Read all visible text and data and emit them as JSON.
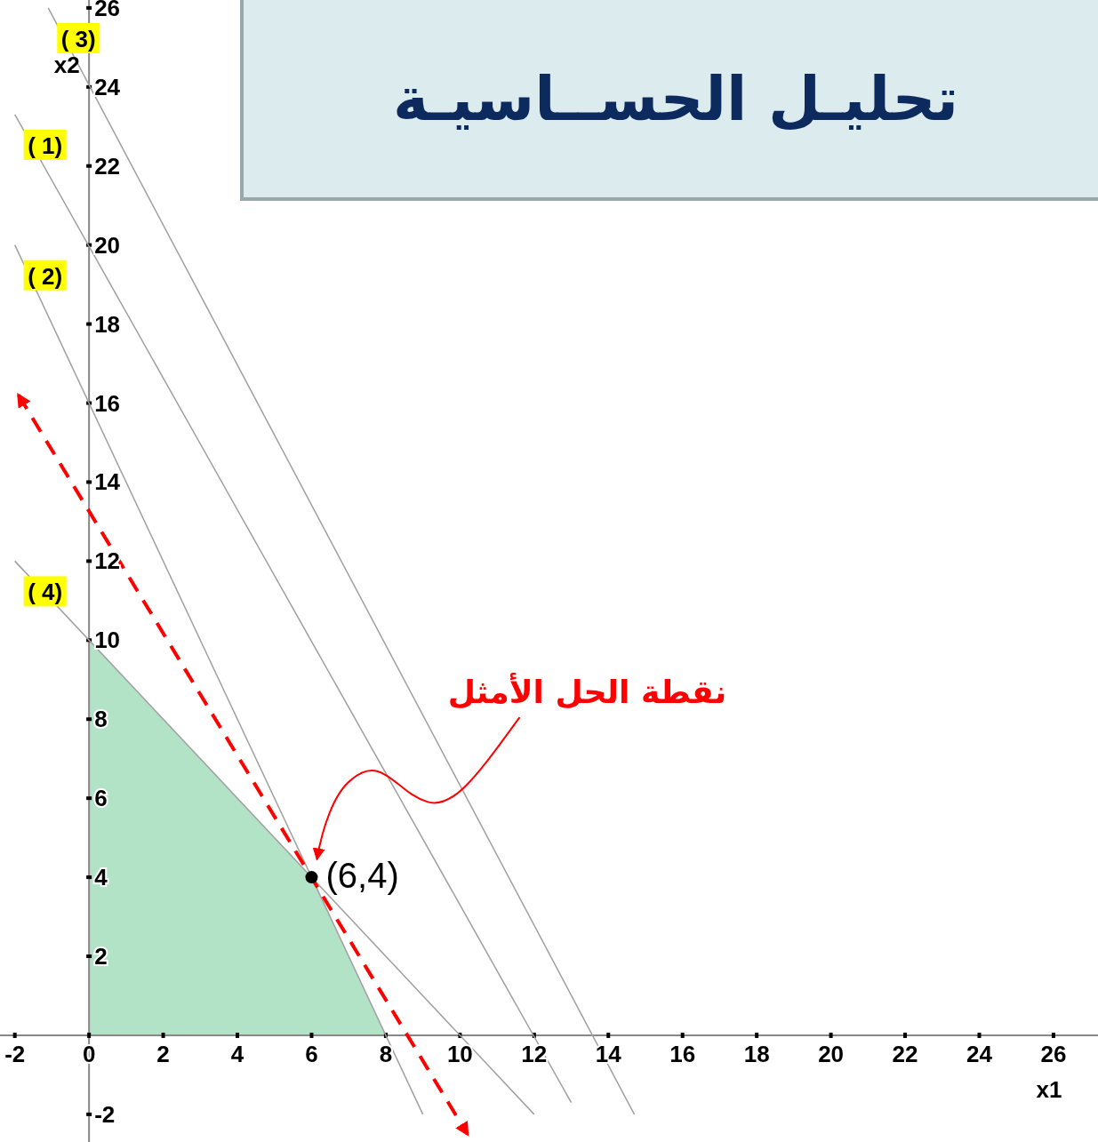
{
  "chart_data": {
    "type": "line",
    "title": "تحليـل الحســاسيـة",
    "xlabel": "x1",
    "ylabel": "x2",
    "xlim": [
      -2.4,
      27.2
    ],
    "ylim": [
      -2.7,
      26.2
    ],
    "xticks": [
      -2,
      0,
      2,
      4,
      6,
      8,
      10,
      12,
      14,
      16,
      18,
      20,
      22,
      24,
      26
    ],
    "yticks": [
      -2,
      2,
      4,
      6,
      8,
      10,
      12,
      14,
      16,
      18,
      20,
      22,
      24,
      26
    ],
    "series": [
      {
        "type": "area",
        "color": "#b3e3c6",
        "x": [
          0,
          0,
          6,
          8
        ],
        "values": [
          0,
          10,
          4,
          0
        ]
      },
      {
        "name": "( 1)",
        "color": "#a0a0a0",
        "x": [
          -2,
          13
        ],
        "values": [
          23.3,
          -1.7
        ]
      },
      {
        "name": "( 2)",
        "color": "#a0a0a0",
        "x": [
          -2,
          9
        ],
        "values": [
          20,
          -2
        ]
      },
      {
        "name": "( 3)",
        "color": "#a0a0a0",
        "x": [
          -1.1,
          14.7
        ],
        "values": [
          26,
          -2
        ]
      },
      {
        "name": "( 4)",
        "color": "#a0a0a0",
        "x": [
          -2,
          12
        ],
        "values": [
          12,
          -2
        ]
      },
      {
        "color": "#ff0000",
        "line_style": "dashed",
        "x": [
          -1.9,
          10.2
        ],
        "values": [
          16.2,
          -2.5
        ]
      },
      {
        "type": "scatter",
        "marker": "circle",
        "color": "#000000",
        "x": [
          6
        ],
        "values": [
          4
        ]
      }
    ],
    "annotations": [
      {
        "text": "(6,4)",
        "x": 6,
        "y": 4
      },
      "نقطة الحل الأمثل"
    ]
  }
}
